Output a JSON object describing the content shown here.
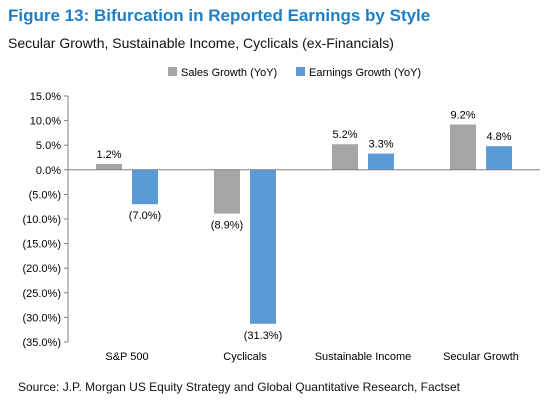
{
  "figure": {
    "title": "Figure 13: Bifurcation in Reported Earnings by Style",
    "subtitle": "Secular Growth, Sustainable Income, Cyclicals (ex-Financials)",
    "source": "Source: J.P. Morgan US Equity Strategy and Global Quantitative Research, Factset"
  },
  "chart_data": {
    "type": "bar",
    "categories": [
      "S&P 500",
      "Cyclicals",
      "Sustainable Income",
      "Secular Growth"
    ],
    "series": [
      {
        "name": "Sales Growth (YoY)",
        "color": "#a6a6a6",
        "values": [
          1.2,
          -8.9,
          5.2,
          9.2
        ],
        "labels": [
          "1.2%",
          "(8.9%)",
          "5.2%",
          "9.2%"
        ]
      },
      {
        "name": "Earnings Growth (YoY)",
        "color": "#5b9bd5",
        "values": [
          -7.0,
          -31.3,
          3.3,
          4.8
        ],
        "labels": [
          "(7.0%)",
          "(31.3%)",
          "3.3%",
          "4.8%"
        ]
      }
    ],
    "yticks": [
      15,
      10,
      5,
      0,
      -5,
      -10,
      -15,
      -20,
      -25,
      -30,
      -35
    ],
    "ytick_labels": [
      "15.0%",
      "10.0%",
      "5.0%",
      "0.0%",
      "(5.0%)",
      "(10.0%)",
      "(15.0%)",
      "(20.0%)",
      "(25.0%)",
      "(30.0%)",
      "(35.0%)"
    ],
    "ylim": [
      -35,
      15
    ],
    "legend_position": "top",
    "grid": false
  }
}
